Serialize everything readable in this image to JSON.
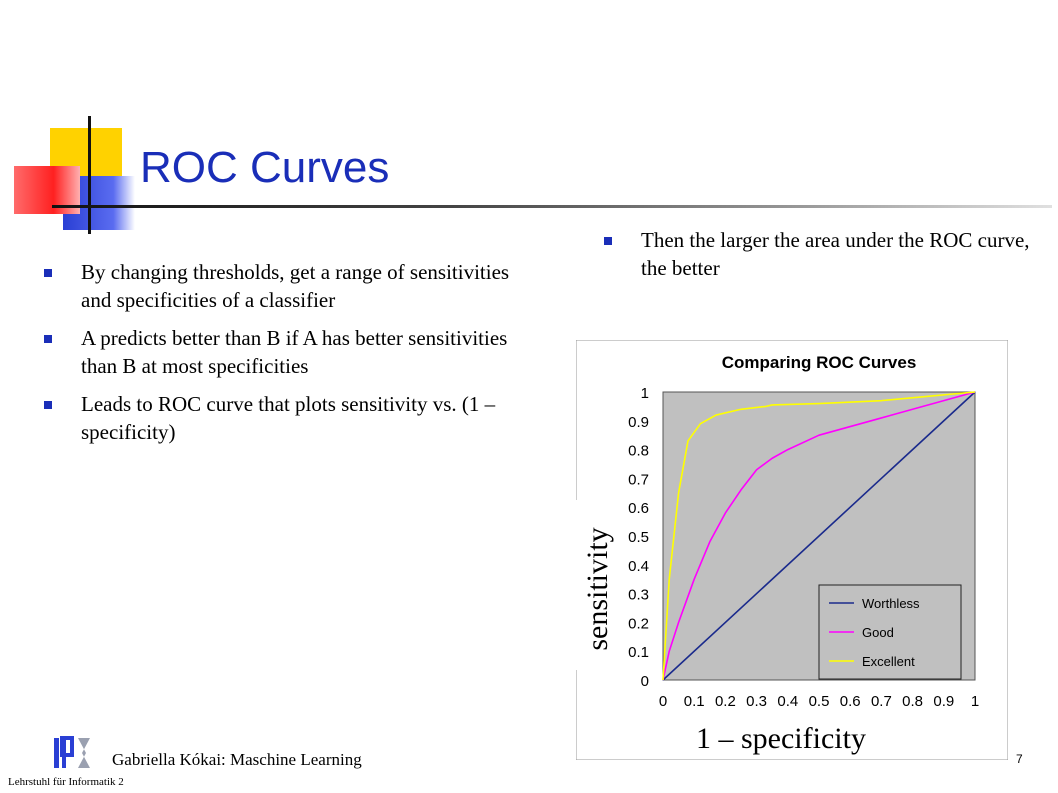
{
  "slide": {
    "title": "ROC Curves",
    "left_bullets": [
      "By changing thresholds, get a range of sensitivities and specificities of a classifier",
      "A predicts better than B if A has better sensitivities than B at most specificities",
      "Leads to ROC curve that plots sensitivity vs. (1 – specificity)"
    ],
    "right_bullet": "Then the larger the area under the ROC curve, the better",
    "y_axis_overlay": "sensitivity",
    "x_axis_overlay": "1 – specificity",
    "footer_author": "Gabriella Kókai: Maschine Learning",
    "footer_institution": "Lehrstuhl für Informatik 2",
    "page_number": "7"
  },
  "chart_data": {
    "type": "line",
    "title": "Comparing ROC Curves",
    "xlim": [
      0,
      1
    ],
    "ylim": [
      0,
      1
    ],
    "x_ticks": [
      "0",
      "0.1",
      "0.2",
      "0.3",
      "0.4",
      "0.5",
      "0.6",
      "0.7",
      "0.8",
      "0.9",
      "1"
    ],
    "y_ticks": [
      "0",
      "0.1",
      "0.2",
      "0.3",
      "0.4",
      "0.5",
      "0.6",
      "0.7",
      "0.8",
      "0.9",
      "1"
    ],
    "plot_background": "#c0c0c0",
    "legend_position": "bottom-right",
    "series": [
      {
        "name": "Worthless",
        "color": "#1a2a8c",
        "points": [
          [
            0,
            0
          ],
          [
            1,
            1
          ]
        ]
      },
      {
        "name": "Good",
        "color": "#ff00ff",
        "points": [
          [
            0,
            0
          ],
          [
            0.02,
            0.1
          ],
          [
            0.05,
            0.2
          ],
          [
            0.1,
            0.35
          ],
          [
            0.15,
            0.48
          ],
          [
            0.2,
            0.58
          ],
          [
            0.25,
            0.66
          ],
          [
            0.3,
            0.73
          ],
          [
            0.35,
            0.77
          ],
          [
            0.4,
            0.8
          ],
          [
            0.5,
            0.85
          ],
          [
            0.6,
            0.88
          ],
          [
            0.7,
            0.91
          ],
          [
            0.8,
            0.94
          ],
          [
            0.9,
            0.97
          ],
          [
            1,
            1
          ]
        ]
      },
      {
        "name": "Excellent",
        "color": "#ffff00",
        "points": [
          [
            0,
            0
          ],
          [
            0.02,
            0.35
          ],
          [
            0.05,
            0.65
          ],
          [
            0.08,
            0.83
          ],
          [
            0.12,
            0.89
          ],
          [
            0.17,
            0.92
          ],
          [
            0.25,
            0.94
          ],
          [
            0.33,
            0.95
          ],
          [
            0.35,
            0.955
          ],
          [
            0.5,
            0.96
          ],
          [
            0.7,
            0.97
          ],
          [
            0.85,
            0.985
          ],
          [
            1,
            1
          ]
        ]
      }
    ]
  }
}
